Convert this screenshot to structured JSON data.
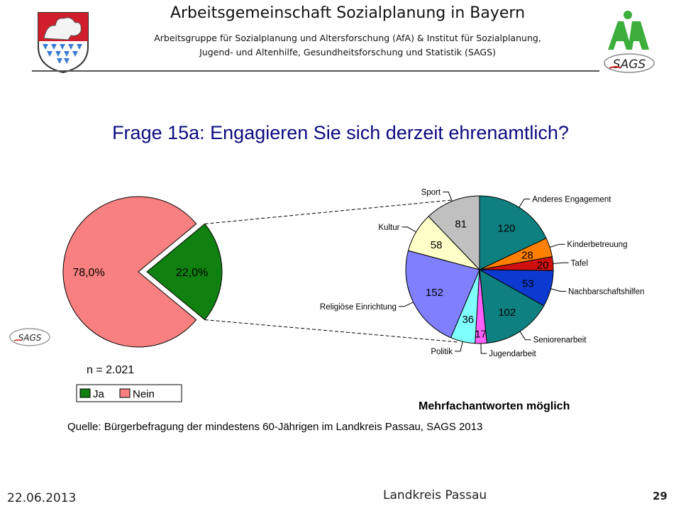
{
  "header": {
    "title": "Arbeitsgemeinschaft Sozialplanung in Bayern",
    "subtitle_line1": "Arbeitsgruppe für Sozialplanung und Altersforschung (AfA) & Institut für Sozialplanung,",
    "subtitle_line2": "Jugend- und Altenhilfe, Gesundheitsforschung und Statistik (SAGS)",
    "logo_text": "SAGS"
  },
  "slide": {
    "title": "Frage 15a: Engagieren Sie sich derzeit ehrenamtlich?",
    "source": "Quelle: Bürgerbefragung der mindestens 60-Jährigen im Landkreis Passau, SAGS 2013"
  },
  "footer": {
    "date": "22.06.2013",
    "center": "Landkreis Passau",
    "page": "29"
  },
  "chart_data": [
    {
      "type": "pie",
      "labels": [
        "Ja",
        "Nein"
      ],
      "values": [
        22.0,
        78.0
      ],
      "value_labels": [
        "22,0%",
        "78,0%"
      ],
      "colors": [
        "#108010",
        "#f88080"
      ],
      "n_label": "n = 2.021",
      "legend": {
        "placement": "bottom-left",
        "items": [
          "Ja",
          "Nein"
        ]
      }
    },
    {
      "type": "pie",
      "labels": [
        "Anderes Engagement",
        "Kinderbetreuung",
        "Tafel",
        "Nachbarschaftshilfen",
        "Seniorenarbeit",
        "Jugendarbeit",
        "Politik",
        "Religiöse Einrichtung",
        "Kultur",
        "Sport"
      ],
      "values": [
        120,
        28,
        20,
        53,
        102,
        17,
        36,
        152,
        58,
        81
      ],
      "colors": [
        "#0e8080",
        "#ff8000",
        "#d01010",
        "#0c3ad0",
        "#0e8080",
        "#ff60ff",
        "#80ffff",
        "#8080ff",
        "#ffffc8",
        "#c0c0c0"
      ],
      "label_colors": [
        "#000000",
        "#000000",
        "#000000",
        "#000000",
        "#000000",
        "#000000",
        "#000000",
        "#000000",
        "#000000",
        "#000000"
      ],
      "note": "Mehrfachantworten möglich"
    }
  ]
}
